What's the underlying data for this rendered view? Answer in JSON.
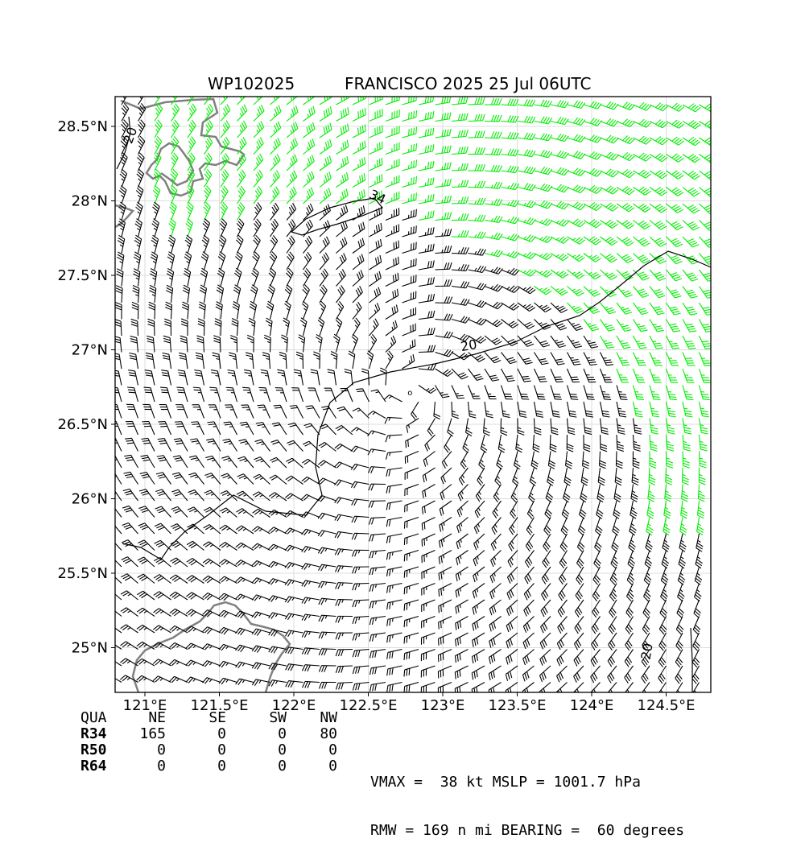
{
  "title": {
    "storm_id": "WP102025",
    "name_time": "FRANCISCO 2025 25 Jul 06UTC"
  },
  "map": {
    "lon_range": [
      120.8,
      124.8
    ],
    "lat_range": [
      24.7,
      28.7
    ],
    "lon_ticks": [
      {
        "v": 121.0,
        "label": "121°E"
      },
      {
        "v": 121.5,
        "label": "121.5°E"
      },
      {
        "v": 122.0,
        "label": "122°E"
      },
      {
        "v": 122.5,
        "label": "122.5°E"
      },
      {
        "v": 123.0,
        "label": "123°E"
      },
      {
        "v": 123.5,
        "label": "123.5°E"
      },
      {
        "v": 124.0,
        "label": "124°E"
      },
      {
        "v": 124.5,
        "label": "124.5°E"
      }
    ],
    "lat_ticks": [
      {
        "v": 28.5,
        "label": "28.5°N"
      },
      {
        "v": 28.0,
        "label": "28°N"
      },
      {
        "v": 27.5,
        "label": "27.5°N"
      },
      {
        "v": 27.0,
        "label": "27°N"
      },
      {
        "v": 26.5,
        "label": "26.5°N"
      },
      {
        "v": 26.0,
        "label": "26°N"
      },
      {
        "v": 25.5,
        "label": "25.5°N"
      },
      {
        "v": 25.0,
        "label": "25°N"
      }
    ],
    "grid": true,
    "center": {
      "lon": 122.78,
      "lat": 26.71
    },
    "contour_labels": [
      {
        "text": "20",
        "lon": 123.18,
        "lat": 27.0,
        "rot": -10
      },
      {
        "text": "34",
        "lon": 122.55,
        "lat": 28.0,
        "rot": 25
      },
      {
        "text": "20",
        "lon": 120.93,
        "lat": 28.43,
        "rot": -70
      },
      {
        "text": "20",
        "lon": 124.4,
        "lat": 24.97,
        "rot": -80
      }
    ],
    "colors": {
      "below_34kt": "#000000",
      "kt_34_to_50": "#00ee00",
      "kt_50_to_64": "#e8b400",
      "coastline": "#808080",
      "grid": "#dcdcdc"
    }
  },
  "quadrant_table": {
    "headers": [
      "QUA",
      "NE",
      "SE",
      "SW",
      "NW"
    ],
    "rows": [
      {
        "label": "R34",
        "values": [
          "165",
          "0",
          "0",
          "80"
        ]
      },
      {
        "label": "R50",
        "values": [
          "0",
          "0",
          "0",
          "0"
        ]
      },
      {
        "label": "R64",
        "values": [
          "0",
          "0",
          "0",
          "0"
        ]
      }
    ]
  },
  "stats": {
    "line1": "VMAX =  38 kt MSLP = 1001.7 hPa",
    "line2": "RMW = 169 n mi BEARING =  60 degrees"
  }
}
